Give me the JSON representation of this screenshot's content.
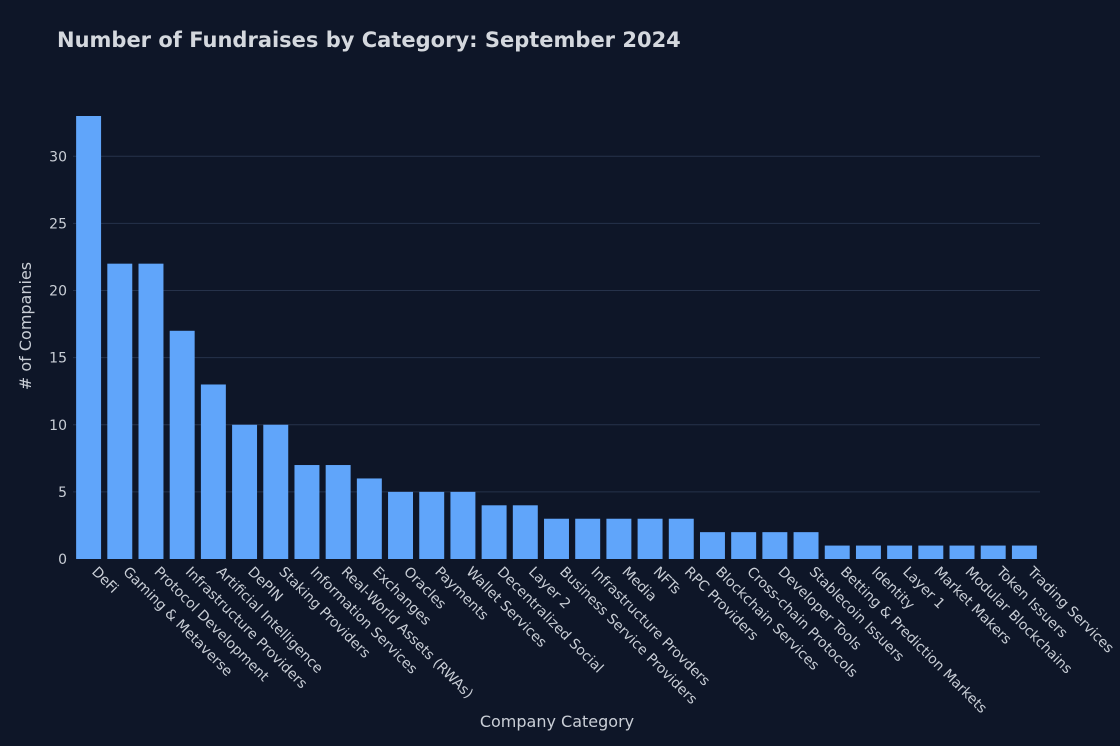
{
  "chart_data": {
    "type": "bar",
    "title": "Number of Fundraises by Category: September 2024",
    "xlabel": "Company Category",
    "ylabel": "# of Companies",
    "ylim": [
      0,
      33
    ],
    "yticks": [
      0,
      5,
      10,
      15,
      20,
      25,
      30
    ],
    "grid": true,
    "bar_color": "#60a5fa",
    "background": "#0e1628",
    "categories": [
      "DeFi",
      "Gaming & Metaverse",
      "Protocol Development",
      "Infrastructure Providers",
      "Artificial Intelligence",
      "DePIN",
      "Staking Providers",
      "Information Services",
      "Real-World Assets (RWAs)",
      "Exchanges",
      "Oracles",
      "Payments",
      "Wallet Services",
      "Decentralized Social",
      "Layer 2",
      "Business Service Providers",
      "Infrastructure Provders",
      "Media",
      "NFTs",
      "RPC Providers",
      "Blockchain Services",
      "Cross-chain Protocols",
      "Developer Tools",
      "Stablecoin Issuers",
      "Betting & Prediction Markets",
      "Identity",
      "Layer 1",
      "Market Makers",
      "Modular Blockchains",
      "Token Issuers",
      "Trading Services"
    ],
    "values": [
      33,
      22,
      22,
      17,
      13,
      10,
      10,
      7,
      7,
      6,
      5,
      5,
      5,
      4,
      4,
      3,
      3,
      3,
      3,
      3,
      2,
      2,
      2,
      2,
      1,
      1,
      1,
      1,
      1,
      1,
      1
    ]
  }
}
